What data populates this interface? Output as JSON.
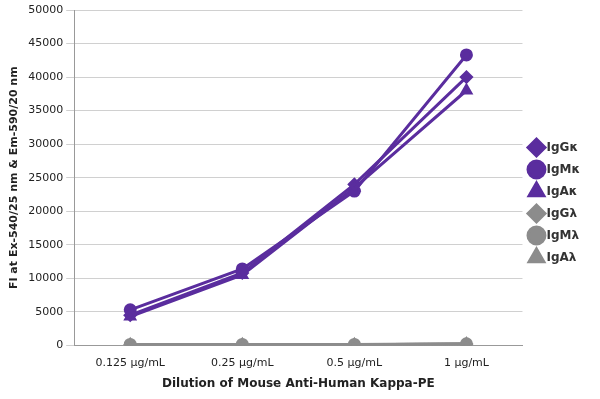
{
  "chart_data": {
    "type": "line",
    "x_label": "Dilution of Mouse Anti-Human Kappa-PE",
    "y_label": "FI at Ex-540/25 nm & Em-590/20 nm",
    "categories": [
      "0.125 µg/mL",
      "0.25 µg/mL",
      "0.5 µg/mL",
      "1 µg/mL"
    ],
    "series": [
      {
        "name": "IgGκ",
        "color": "#5a2d9e",
        "marker": "diamond",
        "line_style": "solid",
        "values": [
          4500,
          10800,
          24000,
          40000
        ]
      },
      {
        "name": "IgMκ",
        "color": "#5a2d9e",
        "marker": "circle",
        "line_style": "solid",
        "values": [
          5300,
          11400,
          23000,
          43300
        ]
      },
      {
        "name": "IgAκ",
        "color": "#5a2d9e",
        "marker": "triangle",
        "line_style": "solid",
        "values": [
          4300,
          10500,
          23500,
          38000
        ]
      },
      {
        "name": "IgGλ",
        "color": "#8c8c8c",
        "marker": "diamond",
        "line_style": "solid",
        "values": [
          100,
          100,
          100,
          200
        ]
      },
      {
        "name": "IgMλ",
        "color": "#8c8c8c",
        "marker": "circle",
        "line_style": "solid",
        "values": [
          150,
          150,
          150,
          250
        ]
      },
      {
        "name": "IgAλ",
        "color": "#8c8c8c",
        "marker": "triangle",
        "line_style": "solid",
        "values": [
          100,
          100,
          100,
          200
        ]
      }
    ],
    "ylim": [
      0,
      50000
    ],
    "yticks": [
      0,
      5000,
      10000,
      15000,
      20000,
      25000,
      30000,
      35000,
      40000,
      45000,
      50000
    ],
    "grid": true,
    "legend": "right"
  }
}
